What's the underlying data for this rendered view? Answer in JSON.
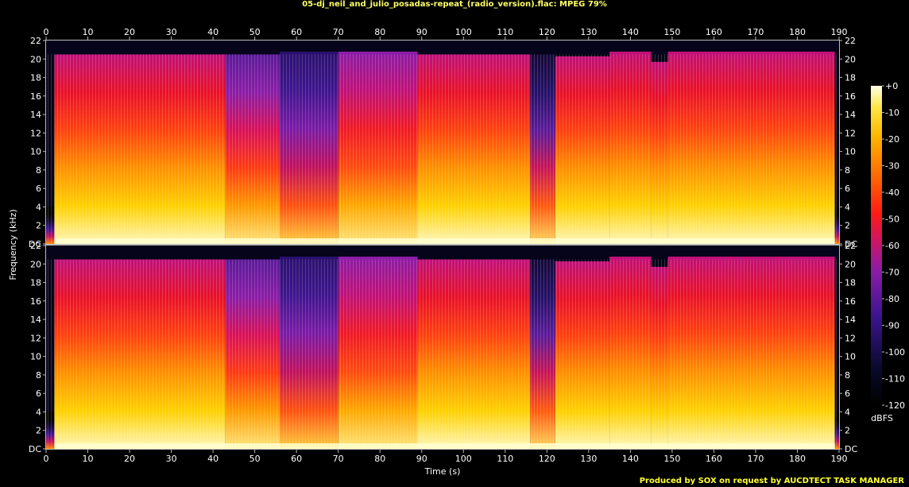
{
  "title": "05-dj_neil_and_julio_posadas-repeat_(radio_version).flac: MPEG 79%",
  "credit": "Produced by SOX on request by AUCDTECT TASK MANAGER",
  "colors": {
    "title": "#ffff66",
    "credit": "#ffff33",
    "frame": "#bbbbbb"
  },
  "chart_data": {
    "type": "heatmap",
    "title": "05-dj_neil_and_julio_posadas-repeat_(radio_version).flac: MPEG 79%",
    "xlabel": "Time (s)",
    "ylabel": "Frequency (kHz)",
    "xlim": [
      0,
      190
    ],
    "ylim": [
      0,
      22
    ],
    "x_ticks": [
      "0",
      "10",
      "20",
      "30",
      "40",
      "50",
      "60",
      "70",
      "80",
      "90",
      "100",
      "110",
      "120",
      "130",
      "140",
      "150",
      "160",
      "170",
      "180",
      "190"
    ],
    "y_ticks": [
      "DC",
      "2",
      "4",
      "6",
      "8",
      "10",
      "12",
      "14",
      "16",
      "18",
      "20",
      "22"
    ],
    "channels": 2,
    "colorbar": {
      "label": "dBFS",
      "range": [
        -120,
        0
      ],
      "ticks": [
        "+0",
        "-10",
        "-20",
        "-30",
        "-40",
        "-50",
        "-60",
        "-70",
        "-80",
        "-90",
        "-100",
        "-110",
        "-120"
      ]
    },
    "frequency_cutoff_khz": 20.5,
    "sections": [
      {
        "start": 0,
        "end": 2,
        "level": "quiet",
        "cutoff": 4
      },
      {
        "start": 2,
        "end": 16,
        "level": "loud",
        "cutoff": 20.5
      },
      {
        "start": 16,
        "end": 43,
        "level": "loud",
        "cutoff": 20.5
      },
      {
        "start": 43,
        "end": 56,
        "level": "medium",
        "cutoff": 20.5
      },
      {
        "start": 56,
        "end": 70,
        "level": "dim",
        "cutoff": 20.8
      },
      {
        "start": 70,
        "end": 89,
        "level": "rising",
        "cutoff": 20.8
      },
      {
        "start": 89,
        "end": 116,
        "level": "loud",
        "cutoff": 20.5
      },
      {
        "start": 116,
        "end": 122,
        "level": "sparse",
        "cutoff": 20.5
      },
      {
        "start": 122,
        "end": 135,
        "level": "loud",
        "cutoff": 20.3
      },
      {
        "start": 135,
        "end": 145,
        "level": "loud",
        "cutoff": 20.8
      },
      {
        "start": 145,
        "end": 149,
        "level": "loud",
        "cutoff": 19.7
      },
      {
        "start": 149,
        "end": 189,
        "level": "loud",
        "cutoff": 20.8
      },
      {
        "start": 189,
        "end": 190,
        "level": "quiet",
        "cutoff": 4
      }
    ]
  }
}
